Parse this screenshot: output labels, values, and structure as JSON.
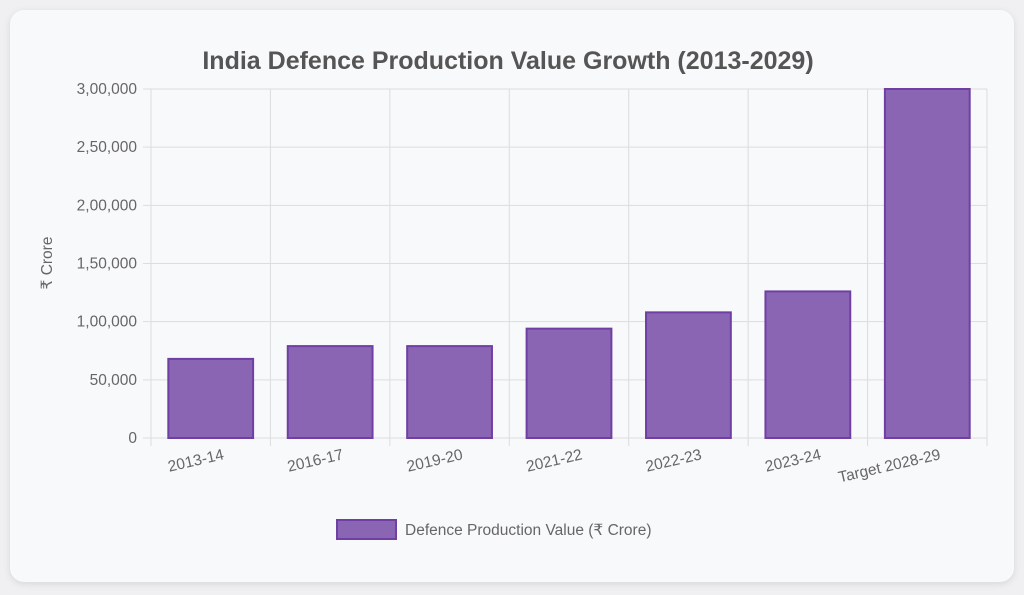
{
  "chart_data": {
    "type": "bar",
    "title": "India Defence Production Value Growth (2013-2029)",
    "ylabel": "₹ Crore",
    "xlabel": "",
    "categories": [
      "2013-14",
      "2016-17",
      "2019-20",
      "2021-22",
      "2022-23",
      "2023-24",
      "Target 2028-29"
    ],
    "series": [
      {
        "name": "Defence Production Value (₹ Crore)",
        "values": [
          68000,
          79000,
          79000,
          94000,
          108000,
          126000,
          300000
        ]
      }
    ],
    "ylim": [
      0,
      300000
    ],
    "yticks": [
      0,
      50000,
      100000,
      150000,
      200000,
      250000,
      300000
    ],
    "ytick_labels": [
      "0",
      "50,000",
      "1,00,000",
      "1,50,000",
      "2,00,000",
      "2,50,000",
      "3,00,000"
    ],
    "grid": true,
    "legend_position": "bottom",
    "colors": {
      "bar_fill": "#8a65b3",
      "bar_stroke": "#6f3fa3",
      "grid": "#dddddd",
      "text": "#666666",
      "title": "#555555"
    }
  }
}
